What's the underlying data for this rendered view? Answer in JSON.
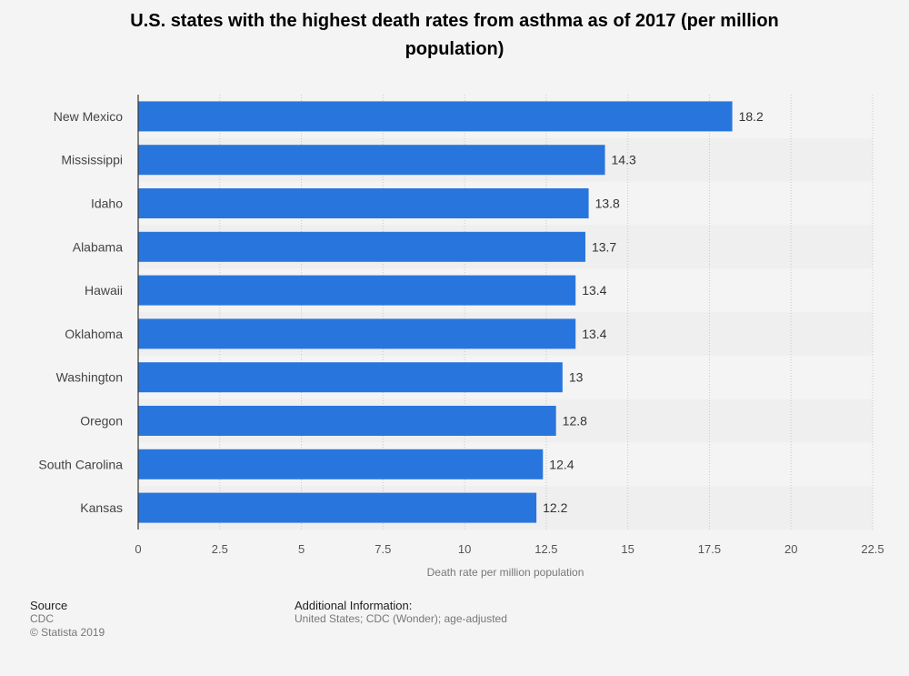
{
  "chart_data": {
    "type": "bar",
    "orientation": "horizontal",
    "title": "U.S. states with the highest death rates from asthma as of 2017 (per million population)",
    "categories": [
      "New Mexico",
      "Mississippi",
      "Idaho",
      "Alabama",
      "Hawaii",
      "Oklahoma",
      "Washington",
      "Oregon",
      "South Carolina",
      "Kansas"
    ],
    "values": [
      18.2,
      14.3,
      13.8,
      13.7,
      13.4,
      13.4,
      13,
      12.8,
      12.4,
      12.2
    ],
    "value_labels": [
      "18.2",
      "14.3",
      "13.8",
      "13.7",
      "13.4",
      "13.4",
      "13",
      "12.8",
      "12.4",
      "12.2"
    ],
    "xlabel": "Death rate per million population",
    "ylabel": "",
    "xlim": [
      0,
      22.5
    ],
    "xticks": [
      "0",
      "2.5",
      "5",
      "7.5",
      "10",
      "12.5",
      "15",
      "17.5",
      "20",
      "22.5"
    ],
    "bar_color": "#2876dd",
    "grid": true
  },
  "footer": {
    "source_heading": "Source",
    "source_name": "CDC",
    "copyright": "© Statista 2019",
    "additional_heading": "Additional Information:",
    "additional_text": "United States; CDC (Wonder); age-adjusted"
  }
}
